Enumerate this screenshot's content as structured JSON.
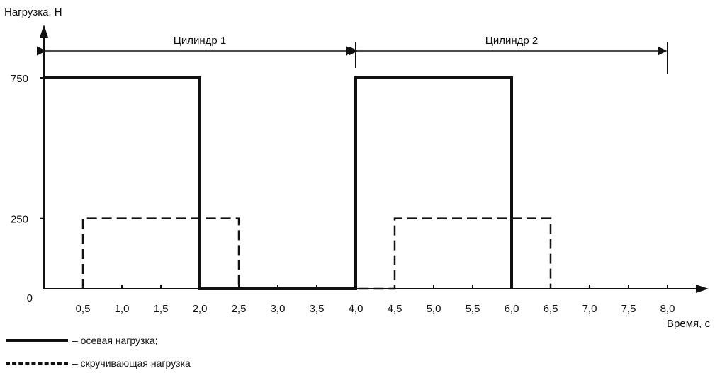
{
  "chart_data": {
    "type": "line",
    "ylabel": "Нагрузка, Н",
    "xlabel": "Время, с",
    "xlim": [
      0,
      8.5
    ],
    "ylim": [
      0,
      800
    ],
    "x_ticks": [
      "0,5",
      "1,0",
      "1,5",
      "2,0",
      "2,5",
      "3,0",
      "3,5",
      "4,0",
      "4,5",
      "5,0",
      "5,5",
      "6,0",
      "6,5",
      "7,0",
      "7,5",
      "8,0"
    ],
    "x_tick_values": [
      0.5,
      1.0,
      1.5,
      2.0,
      2.5,
      3.0,
      3.5,
      4.0,
      4.5,
      5.0,
      5.5,
      6.0,
      6.5,
      7.0,
      7.5,
      8.0
    ],
    "y_ticks": [
      "0",
      "250",
      "750"
    ],
    "y_tick_values": [
      0,
      250,
      750
    ],
    "series": [
      {
        "name": "– осевая нагрузка;",
        "style": "solid",
        "x": [
          0,
          0,
          2.0,
          2.0,
          4.0,
          4.0,
          6.0,
          6.0
        ],
        "y": [
          0,
          750,
          750,
          0,
          0,
          750,
          750,
          0
        ]
      },
      {
        "name": "– скручивающая нагрузка",
        "style": "dashed",
        "x": [
          0.5,
          0.5,
          2.5,
          2.5,
          4.5,
          4.5,
          6.5,
          6.5
        ],
        "y": [
          0,
          250,
          250,
          0,
          0,
          250,
          250,
          0
        ]
      }
    ],
    "intervals": [
      {
        "label": "Цилиндр 1",
        "from": 0,
        "to": 4.0
      },
      {
        "label": "Цилиндр 2",
        "from": 4.0,
        "to": 8.0
      }
    ],
    "grid": false,
    "legend_position": "bottom-left"
  },
  "colors": {
    "ink": "#111111",
    "background": "#ffffff"
  }
}
